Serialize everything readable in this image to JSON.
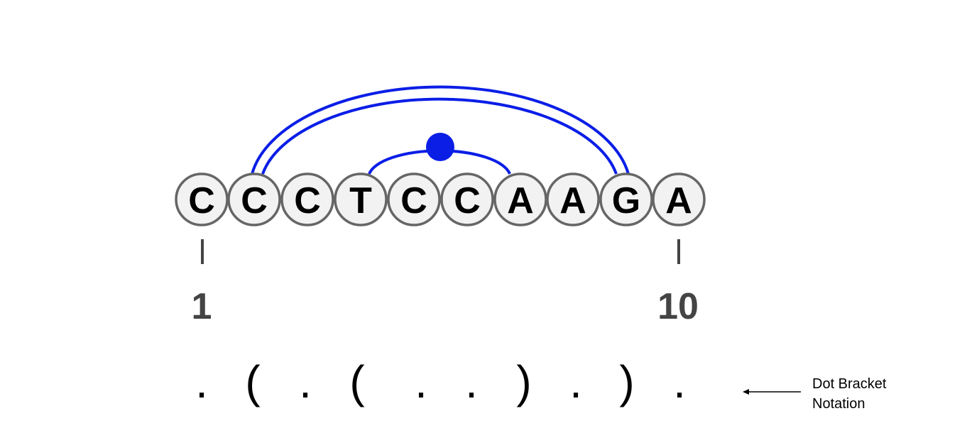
{
  "sequence": [
    "C",
    "C",
    "C",
    "T",
    "C",
    "C",
    "A",
    "A",
    "G",
    "A"
  ],
  "position_labels": {
    "start": "1",
    "end": "10"
  },
  "dot_bracket": [
    ".",
    "(",
    ".",
    "(",
    ".",
    ".",
    ")",
    ".",
    ")",
    "."
  ],
  "annotation": {
    "line1": "Dot Bracket",
    "line2": "Notation"
  },
  "colors": {
    "arc": "#0a1ee6",
    "circle_fill": "#f2f2f2",
    "circle_stroke": "#666666"
  },
  "pairs": [
    {
      "i": 2,
      "j": 9,
      "type": "double"
    },
    {
      "i": 4,
      "j": 7,
      "type": "noncanonical"
    }
  ]
}
